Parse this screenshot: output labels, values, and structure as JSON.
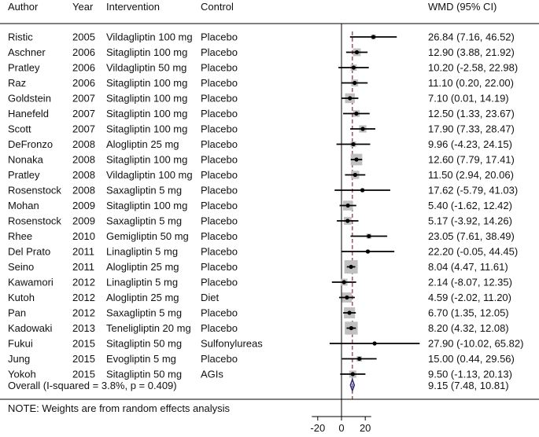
{
  "chart_data": {
    "type": "forest",
    "columns": {
      "author": "Author",
      "year": "Year",
      "intervention": "Intervention",
      "control": "Control",
      "effect": "WMD (95% CI)"
    },
    "x_ticks": [
      "-20",
      "0",
      "20"
    ],
    "xlim": [
      -20,
      70
    ],
    "null_value": 0,
    "pooled_estimate": 9.15,
    "studies": [
      {
        "author": "Ristic",
        "year": "2005",
        "intervention": "Vildagliptin 100 mg",
        "control": "Placebo",
        "est": 26.84,
        "lo": 7.16,
        "hi": 46.52,
        "weight": 1.0,
        "label": "26.84 (7.16, 46.52)"
      },
      {
        "author": "Aschner",
        "year": "2006",
        "intervention": "Sitagliptin 100 mg",
        "control": "Placebo",
        "est": 12.9,
        "lo": 3.88,
        "hi": 21.92,
        "weight": 2.5,
        "label": "12.90 (3.88, 21.92)"
      },
      {
        "author": "Pratley",
        "year": "2006",
        "intervention": "Vildagliptin 50 mg",
        "control": "Placebo",
        "est": 10.2,
        "lo": -2.58,
        "hi": 22.98,
        "weight": 1.6,
        "label": "10.20 (-2.58, 22.98)"
      },
      {
        "author": "Raz",
        "year": "2006",
        "intervention": "Sitagliptin 100 mg",
        "control": "Placebo",
        "est": 11.1,
        "lo": 0.2,
        "hi": 22.0,
        "weight": 2.0,
        "label": "11.10 (0.20, 22.00)"
      },
      {
        "author": "Goldstein",
        "year": "2007",
        "intervention": "Sitagliptin 100 mg",
        "control": "Placebo",
        "est": 7.1,
        "lo": 0.01,
        "hi": 14.19,
        "weight": 4.0,
        "label": "7.10 (0.01, 14.19)"
      },
      {
        "author": "Hanefeld",
        "year": "2007",
        "intervention": "Sitagliptin 100 mg",
        "control": "Placebo",
        "est": 12.5,
        "lo": 1.33,
        "hi": 23.67,
        "weight": 1.9,
        "label": "12.50 (1.33, 23.67)"
      },
      {
        "author": "Scott",
        "year": "2007",
        "intervention": "Sitagliptin 100 mg",
        "control": "Placebo",
        "est": 17.9,
        "lo": 7.33,
        "hi": 28.47,
        "weight": 2.2,
        "label": "17.90 (7.33, 28.47)"
      },
      {
        "author": "DeFronzo",
        "year": "2008",
        "intervention": "Alogliptin 25 mg",
        "control": "Placebo",
        "est": 9.96,
        "lo": -4.23,
        "hi": 24.15,
        "weight": 1.3,
        "label": "9.96 (-4.23, 24.15)"
      },
      {
        "author": "Nonaka",
        "year": "2008",
        "intervention": "Sitagliptin 100 mg",
        "control": "Placebo",
        "est": 12.6,
        "lo": 7.79,
        "hi": 17.41,
        "weight": 5.6,
        "label": "12.60 (7.79, 17.41)"
      },
      {
        "author": "Pratley",
        "year": "2008",
        "intervention": "Vildagliptin 100 mg",
        "control": "Placebo",
        "est": 11.5,
        "lo": 2.94,
        "hi": 20.06,
        "weight": 2.8,
        "label": "11.50 (2.94, 20.06)"
      },
      {
        "author": "Rosenstock",
        "year": "2008",
        "intervention": "Saxagliptin 5 mg",
        "control": "Placebo",
        "est": 17.62,
        "lo": -5.79,
        "hi": 41.03,
        "weight": 0.6,
        "label": "17.62 (-5.79, 41.03)"
      },
      {
        "author": "Mohan",
        "year": "2009",
        "intervention": "Sitagliptin 100 mg",
        "control": "Placebo",
        "est": 5.4,
        "lo": -1.62,
        "hi": 12.42,
        "weight": 4.0,
        "label": "5.40 (-1.62, 12.42)"
      },
      {
        "author": "Rosenstock",
        "year": "2009",
        "intervention": "Saxagliptin 5 mg",
        "control": "Placebo",
        "est": 5.17,
        "lo": -3.92,
        "hi": 14.26,
        "weight": 2.5,
        "label": "5.17 (-3.92, 14.26)"
      },
      {
        "author": "Rhee",
        "year": "2010",
        "intervention": "Gemigliptin 50 mg",
        "control": "Placebo",
        "est": 23.05,
        "lo": 7.61,
        "hi": 38.49,
        "weight": 1.1,
        "label": "23.05 (7.61, 38.49)"
      },
      {
        "author": "Del Prato",
        "year": "2011",
        "intervention": "Linagliptin 5 mg",
        "control": "Placebo",
        "est": 22.2,
        "lo": -0.05,
        "hi": 44.45,
        "weight": 0.6,
        "label": "22.20 (-0.05, 44.45)"
      },
      {
        "author": "Seino",
        "year": "2011",
        "intervention": "Alogliptin 25 mg",
        "control": "Placebo",
        "est": 8.04,
        "lo": 4.47,
        "hi": 11.61,
        "weight": 7.5,
        "label": "8.04 (4.47, 11.61)"
      },
      {
        "author": "Kawamori",
        "year": "2012",
        "intervention": "Linagliptin 5 mg",
        "control": "Placebo",
        "est": 2.14,
        "lo": -8.07,
        "hi": 12.35,
        "weight": 2.0,
        "label": "2.14 (-8.07, 12.35)"
      },
      {
        "author": "Kutoh",
        "year": "2012",
        "intervention": "Alogliptin 25 mg",
        "control": "Diet",
        "est": 4.59,
        "lo": -2.02,
        "hi": 11.2,
        "weight": 4.2,
        "label": "4.59 (-2.02, 11.20)"
      },
      {
        "author": "Pan",
        "year": "2012",
        "intervention": "Saxagliptin 5 mg",
        "control": "Placebo",
        "est": 6.7,
        "lo": 1.35,
        "hi": 12.05,
        "weight": 5.2,
        "label": "6.70 (1.35, 12.05)"
      },
      {
        "author": "Kadowaki",
        "year": "2013",
        "intervention": "Teneligliptin 20 mg",
        "control": "Placebo",
        "est": 8.2,
        "lo": 4.32,
        "hi": 12.08,
        "weight": 7.0,
        "label": "8.20 (4.32, 12.08)"
      },
      {
        "author": "Fukui",
        "year": "2015",
        "intervention": "Sitagliptin 50 mg",
        "control": "Sulfonylureas",
        "est": 27.9,
        "lo": -10.02,
        "hi": 65.82,
        "weight": 0.3,
        "label": "27.90 (-10.02, 65.82)"
      },
      {
        "author": "Jung",
        "year": "2015",
        "intervention": "Evogliptin 5 mg",
        "control": "Placebo",
        "est": 15.0,
        "lo": 0.44,
        "hi": 29.56,
        "weight": 1.2,
        "label": "15.00 (0.44, 29.56)"
      },
      {
        "author": "Yokoh",
        "year": "2015",
        "intervention": "Sitagliptin 50 mg",
        "control": "AGIs",
        "est": 9.5,
        "lo": -1.13,
        "hi": 20.13,
        "weight": 2.2,
        "label": "9.50 (-1.13, 20.13)"
      }
    ],
    "overall": {
      "text": "Overall  (I-squared = 3.8%, p = 0.409)",
      "est": 9.15,
      "lo": 7.48,
      "hi": 10.81,
      "label": "9.15 (7.48, 10.81)"
    },
    "note": "NOTE: Weights are from random effects analysis",
    "colors": {
      "marker": "#000000",
      "weight_box": "#c0c0c0",
      "pooled_line": "#8b2a3a",
      "diamond": "#1f2a7a",
      "axis": "#000000"
    }
  }
}
